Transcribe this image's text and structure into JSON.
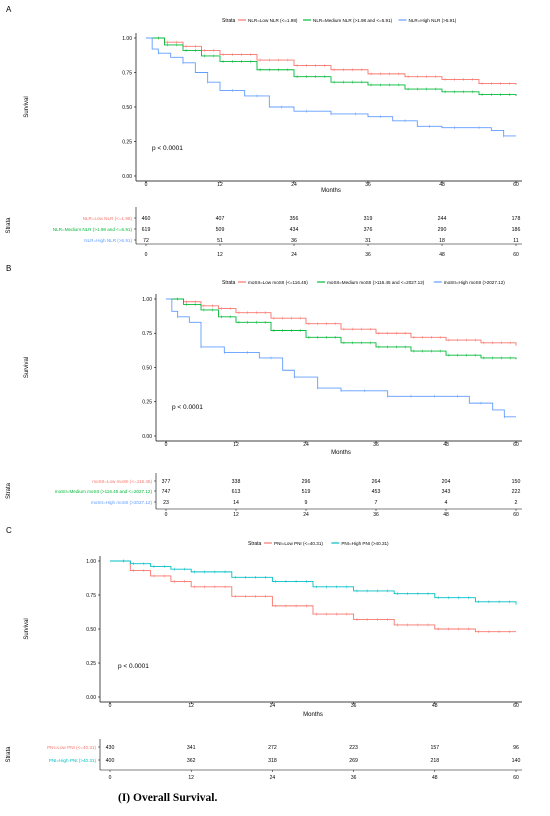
{
  "caption": "(I)     Overall Survival.",
  "chart_data": [
    {
      "type": "line",
      "panel_label": "A",
      "legend_title": "Strata",
      "legend_position": "top",
      "ylabel": "Survival",
      "xlabel": "Months",
      "xlim": [
        0,
        60
      ],
      "ylim": [
        0,
        1
      ],
      "x_ticks": [
        "0",
        "12",
        "24",
        "36",
        "48",
        "60"
      ],
      "y_ticks": [
        "0.00",
        "0.25",
        "0.50",
        "0.75",
        "1.00"
      ],
      "annotation": "p < 0.0001",
      "series": [
        {
          "name": "NLR=Low NLR (<=1.98)",
          "color": "#f8766d",
          "x": [
            0,
            3,
            6,
            9,
            12,
            18,
            24,
            30,
            36,
            42,
            48,
            54,
            60
          ],
          "y": [
            1.0,
            0.97,
            0.94,
            0.91,
            0.88,
            0.84,
            0.8,
            0.77,
            0.74,
            0.72,
            0.7,
            0.67,
            0.66
          ]
        },
        {
          "name": "NLR=Medium NLR (>1.98 and <=5.91)",
          "color": "#00ba38",
          "x": [
            0,
            3,
            6,
            9,
            12,
            18,
            24,
            30,
            36,
            42,
            48,
            54,
            60
          ],
          "y": [
            1.0,
            0.95,
            0.91,
            0.87,
            0.83,
            0.77,
            0.72,
            0.68,
            0.66,
            0.63,
            0.61,
            0.59,
            0.58
          ]
        },
        {
          "name": "NLR=High NLR (>5.91)",
          "color": "#619cff",
          "x": [
            0,
            1,
            2,
            4,
            6,
            8,
            10,
            12,
            16,
            20,
            24,
            30,
            36,
            40,
            44,
            48,
            52,
            56,
            58,
            60
          ],
          "y": [
            1.0,
            0.92,
            0.89,
            0.86,
            0.82,
            0.75,
            0.68,
            0.62,
            0.58,
            0.5,
            0.47,
            0.45,
            0.43,
            0.4,
            0.36,
            0.35,
            0.35,
            0.33,
            0.29,
            0.29
          ]
        }
      ],
      "risk_table": {
        "strata_label": "Strata",
        "rows": [
          {
            "label": "NLR=Low NLR (<=1.98)",
            "color": "#f8766d",
            "values": [
              "460",
              "407",
              "356",
              "319",
              "244",
              "178"
            ]
          },
          {
            "label": "NLR=Medium NLR (>1.98 and <=5.91)",
            "color": "#00ba38",
            "values": [
              "619",
              "509",
              "434",
              "376",
              "290",
              "186"
            ]
          },
          {
            "label": "NLR=High NLR (>5.91)",
            "color": "#619cff",
            "values": [
              "72",
              "51",
              "36",
              "31",
              "18",
              "11"
            ]
          }
        ]
      }
    },
    {
      "type": "line",
      "panel_label": "B",
      "legend_title": "Strata",
      "legend_position": "top",
      "ylabel": "Survival",
      "xlabel": "Months",
      "xlim": [
        0,
        60
      ],
      "ylim": [
        0,
        1
      ],
      "x_ticks": [
        "0",
        "12",
        "24",
        "36",
        "48",
        "60"
      ],
      "y_ticks": [
        "0.00",
        "0.25",
        "0.50",
        "0.75",
        "1.00"
      ],
      "annotation": "p < 0.0001",
      "series": [
        {
          "name": "moSII=Low moSII (<=116.45)",
          "color": "#f8766d",
          "x": [
            0,
            3,
            6,
            9,
            12,
            18,
            24,
            30,
            36,
            42,
            48,
            54,
            60
          ],
          "y": [
            1.0,
            0.98,
            0.95,
            0.93,
            0.9,
            0.86,
            0.82,
            0.78,
            0.75,
            0.72,
            0.7,
            0.68,
            0.66
          ]
        },
        {
          "name": "moSII=Medium moSII (>116.45 and <=2027.12)",
          "color": "#00ba38",
          "x": [
            0,
            3,
            6,
            9,
            12,
            18,
            24,
            30,
            36,
            42,
            48,
            54,
            60
          ],
          "y": [
            1.0,
            0.96,
            0.92,
            0.87,
            0.83,
            0.77,
            0.72,
            0.68,
            0.65,
            0.62,
            0.59,
            0.57,
            0.56
          ]
        },
        {
          "name": "moSII=High moSII (>2027.12)",
          "color": "#619cff",
          "x": [
            0,
            1,
            2,
            4,
            6,
            10,
            12,
            16,
            20,
            22,
            26,
            30,
            36,
            38,
            48,
            52,
            56,
            58,
            60
          ],
          "y": [
            1.0,
            0.91,
            0.87,
            0.83,
            0.65,
            0.61,
            0.61,
            0.57,
            0.48,
            0.43,
            0.35,
            0.33,
            0.33,
            0.29,
            0.29,
            0.24,
            0.19,
            0.14,
            0.14
          ]
        }
      ],
      "risk_table": {
        "strata_label": "Strata",
        "rows": [
          {
            "label": "moSII=Low moSII (<=116.45)",
            "color": "#f8766d",
            "values": [
              "377",
              "338",
              "296",
              "264",
              "204",
              "150"
            ]
          },
          {
            "label": "moSII=Medium moSII (>116.45 and <=2027.12)",
            "color": "#00ba38",
            "values": [
              "747",
              "613",
              "519",
              "453",
              "343",
              "222"
            ]
          },
          {
            "label": "moSII=High moSII (>2027.12)",
            "color": "#619cff",
            "values": [
              "23",
              "14",
              "9",
              "7",
              "4",
              "2"
            ]
          }
        ]
      }
    },
    {
      "type": "line",
      "panel_label": "C",
      "legend_title": "Strata",
      "legend_position": "top",
      "ylabel": "Survival",
      "xlabel": "Months",
      "xlim": [
        0,
        60
      ],
      "ylim": [
        0,
        1
      ],
      "x_ticks": [
        "0",
        "12",
        "24",
        "36",
        "48",
        "60"
      ],
      "y_ticks": [
        "0.00",
        "0.25",
        "0.50",
        "0.75",
        "1.00"
      ],
      "annotation": "p < 0.0001",
      "series": [
        {
          "name": "PNI=Low PNI (<=40.31)",
          "color": "#f8766d",
          "x": [
            0,
            3,
            6,
            9,
            12,
            18,
            24,
            30,
            36,
            42,
            48,
            54,
            60
          ],
          "y": [
            1.0,
            0.93,
            0.89,
            0.85,
            0.81,
            0.74,
            0.67,
            0.61,
            0.57,
            0.53,
            0.5,
            0.48,
            0.48
          ]
        },
        {
          "name": "PNI=High PNI (>40.31)",
          "color": "#00bfc4",
          "x": [
            0,
            3,
            6,
            9,
            12,
            18,
            24,
            30,
            36,
            42,
            48,
            54,
            60
          ],
          "y": [
            1.0,
            0.98,
            0.96,
            0.94,
            0.92,
            0.88,
            0.85,
            0.81,
            0.78,
            0.76,
            0.73,
            0.7,
            0.68
          ]
        }
      ],
      "risk_table": {
        "strata_label": "Strata",
        "rows": [
          {
            "label": "PNI=Low PNI (<=40.31)",
            "color": "#f8766d",
            "values": [
              "430",
              "341",
              "272",
              "223",
              "157",
              "96"
            ]
          },
          {
            "label": "PNI=High PNI (>40.31)",
            "color": "#00bfc4",
            "values": [
              "400",
              "362",
              "318",
              "269",
              "218",
              "140"
            ]
          }
        ]
      }
    }
  ]
}
